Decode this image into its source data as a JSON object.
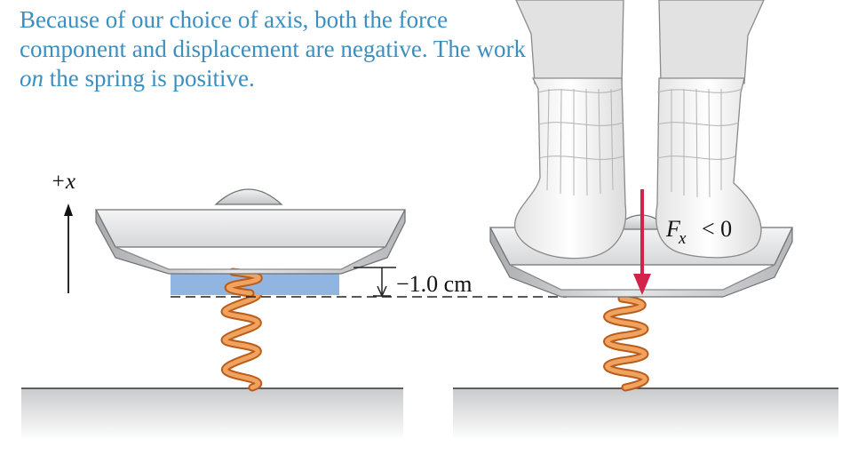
{
  "caption": {
    "part1": "Because of our choice of axis, both the force component and displacement are negative. The work ",
    "emphasis": "on",
    "part2": " the spring is positive."
  },
  "axis_label": "+x",
  "displacement_label": "−1.0 cm",
  "force_label": {
    "symbol": "F",
    "subscript": "x",
    "relation": "< 0"
  },
  "colors": {
    "caption_text": "#3b8fc0",
    "compression_fill": "#8fb5e0",
    "force_arrow": "#d2234a",
    "spring": "#e98a3e",
    "platform": "#d9dadc"
  }
}
